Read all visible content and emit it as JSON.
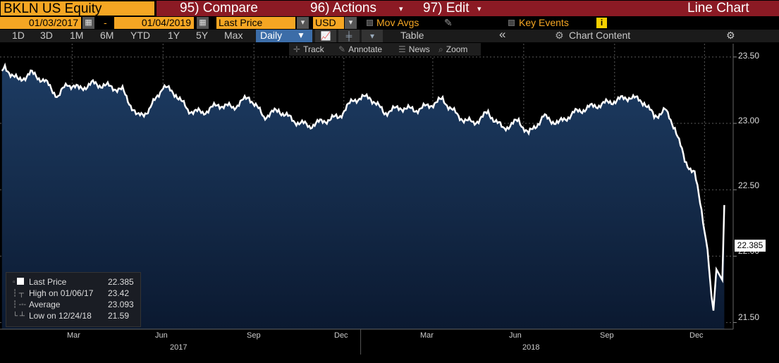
{
  "header": {
    "ticker": "BKLN US Equity",
    "compare": "95) Compare",
    "actions": "96) Actions",
    "edit": "97) Edit",
    "chart_type": "Line Chart",
    "dropdown_arrow": "▾"
  },
  "options": {
    "start_date": "01/03/2017",
    "dash": "-",
    "end_date": "01/04/2019",
    "field": "Last Price",
    "currency": "USD",
    "mov_avgs": "Mov Avgs",
    "key_events": "Key Events",
    "info_icon": "i"
  },
  "periods": [
    "1D",
    "3D",
    "1M",
    "6M",
    "YTD",
    "1Y",
    "5Y",
    "Max"
  ],
  "frequency": "Daily",
  "controls": {
    "table": "Table",
    "collapse": "«",
    "chart_content": "Chart Content",
    "settings": "⚙"
  },
  "tools": {
    "track": "Track",
    "annotate": "Annotate",
    "news": "News",
    "zoom": "Zoom"
  },
  "last_tag": "22.385",
  "legend": [
    {
      "label": "Last Price",
      "value": "22.385",
      "icon": "last-price-square-icon"
    },
    {
      "label": "High on 01/06/17",
      "value": "23.42",
      "icon": "high-marker-icon"
    },
    {
      "label": "Average",
      "value": "23.093",
      "icon": "average-line-icon"
    },
    {
      "label": "Low on 12/24/18",
      "value": "21.59",
      "icon": "low-marker-icon"
    }
  ],
  "colors": {
    "ticker_bg": "#f5a623",
    "menu_bg": "#8b1a24",
    "line": "#ffffff",
    "area_top": "#1d3c63",
    "area_bottom": "#0b1930",
    "daily_bg": "#3c6da8"
  },
  "chart_data": {
    "type": "area",
    "y_ticks": [
      "23.50",
      "23.00",
      "22.50",
      "22.00",
      "21.50"
    ],
    "ylim": [
      21.45,
      23.6
    ],
    "x_month_labels": [
      "Mar",
      "Jun",
      "Sep",
      "Dec",
      "Mar",
      "Jun",
      "Sep",
      "Dec"
    ],
    "x_year_labels": [
      "2017",
      "2018"
    ],
    "grid": true,
    "series": [
      {
        "x": [
          "2017-01-03",
          "2017-01-06",
          "2017-01-20",
          "2017-02-01",
          "2017-02-15",
          "2017-03-01",
          "2017-03-10",
          "2017-03-22",
          "2017-04-05",
          "2017-04-20",
          "2017-05-05",
          "2017-05-20",
          "2017-06-01",
          "2017-06-15",
          "2017-06-28",
          "2017-07-10",
          "2017-07-25",
          "2017-08-10",
          "2017-08-25",
          "2017-09-10",
          "2017-09-25",
          "2017-10-10",
          "2017-10-25",
          "2017-11-10",
          "2017-11-25",
          "2017-12-10",
          "2017-12-25",
          "2018-01-10",
          "2018-01-25",
          "2018-02-10",
          "2018-02-25",
          "2018-03-10",
          "2018-03-25",
          "2018-04-10",
          "2018-04-25",
          "2018-05-10",
          "2018-05-25",
          "2018-06-10",
          "2018-06-20",
          "2018-07-05",
          "2018-07-20",
          "2018-08-05",
          "2018-08-20",
          "2018-09-05",
          "2018-09-20",
          "2018-10-01",
          "2018-10-15",
          "2018-10-25",
          "2018-11-05",
          "2018-11-15",
          "2018-11-25",
          "2018-12-05",
          "2018-12-12",
          "2018-12-18",
          "2018-12-22",
          "2018-12-24",
          "2018-12-27",
          "2019-01-02",
          "2019-01-04"
        ],
        "y": [
          23.38,
          23.42,
          23.32,
          23.38,
          23.32,
          23.2,
          23.3,
          23.26,
          23.3,
          23.28,
          23.25,
          23.05,
          23.1,
          23.28,
          23.22,
          23.1,
          23.08,
          23.14,
          23.12,
          23.2,
          23.05,
          23.1,
          23.02,
          22.98,
          23.02,
          23.05,
          23.18,
          23.2,
          23.08,
          23.12,
          23.1,
          23.13,
          23.18,
          23.05,
          23.0,
          23.08,
          22.96,
          23.02,
          22.92,
          23.05,
          23.0,
          23.08,
          23.12,
          23.15,
          23.18,
          23.2,
          23.16,
          23.05,
          23.1,
          22.97,
          22.72,
          22.62,
          22.35,
          22.05,
          21.7,
          21.59,
          21.9,
          21.82,
          22.385
        ]
      }
    ]
  }
}
